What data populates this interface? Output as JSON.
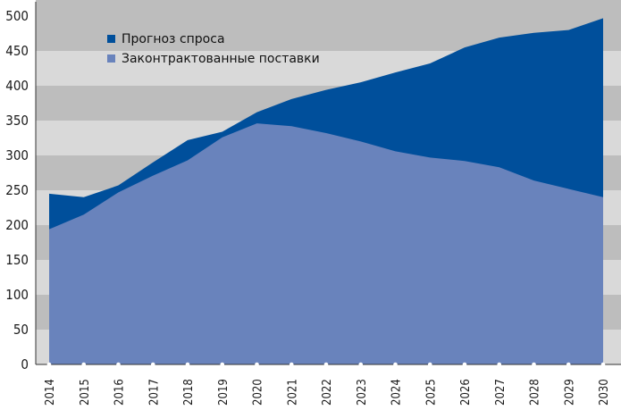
{
  "chart_data": {
    "type": "area",
    "title": "",
    "xlabel": "",
    "ylabel": "",
    "x": [
      "2014",
      "2015",
      "2016",
      "2017",
      "2018",
      "2019",
      "2020",
      "2021",
      "2022",
      "2023",
      "2024",
      "2025",
      "2026",
      "2027",
      "2028",
      "2029",
      "2030"
    ],
    "ylim": [
      0,
      500
    ],
    "yticks": [
      0,
      50,
      100,
      150,
      200,
      250,
      300,
      350,
      400,
      450,
      500
    ],
    "grid": "alternating horizontal bands",
    "legend": "top-left inside plot",
    "series": [
      {
        "name": "Прогноз спроса",
        "color": "#004f9b",
        "values": [
          245,
          240,
          257,
          290,
          322,
          334,
          362,
          381,
          394,
          405,
          419,
          432,
          455,
          469,
          476,
          480,
          497
        ]
      },
      {
        "name": "Законтрактованные поставки",
        "color": "#6983bc",
        "values": [
          194,
          215,
          247,
          271,
          293,
          326,
          346,
          342,
          332,
          320,
          306,
          297,
          292,
          283,
          264,
          252,
          240
        ]
      }
    ]
  }
}
